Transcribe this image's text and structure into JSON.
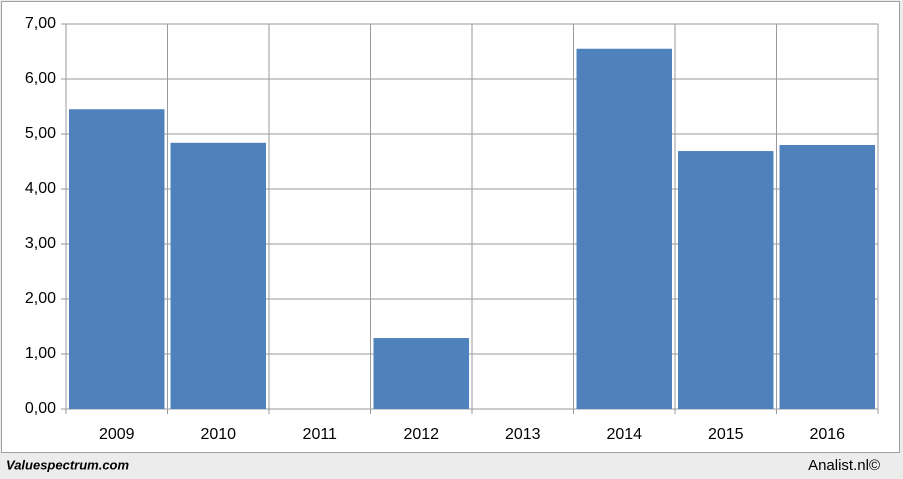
{
  "chart_data": {
    "type": "bar",
    "categories": [
      "2009",
      "2010",
      "2011",
      "2012",
      "2013",
      "2014",
      "2015",
      "2016"
    ],
    "values": [
      5.45,
      4.84,
      null,
      1.29,
      null,
      6.55,
      4.69,
      4.8
    ],
    "color": "#4f81bd",
    "ylim": [
      0,
      7
    ],
    "yticks": [
      {
        "value": 0,
        "label": "0,00"
      },
      {
        "value": 1,
        "label": "1,00"
      },
      {
        "value": 2,
        "label": "2,00"
      },
      {
        "value": 3,
        "label": "3,00"
      },
      {
        "value": 4,
        "label": "4,00"
      },
      {
        "value": 5,
        "label": "5,00"
      },
      {
        "value": 6,
        "label": "6,00"
      },
      {
        "value": 7,
        "label": "7,00"
      }
    ],
    "grid": true,
    "footer_left": "Valuespectrum.com",
    "footer_right": "Analist.nl©"
  }
}
